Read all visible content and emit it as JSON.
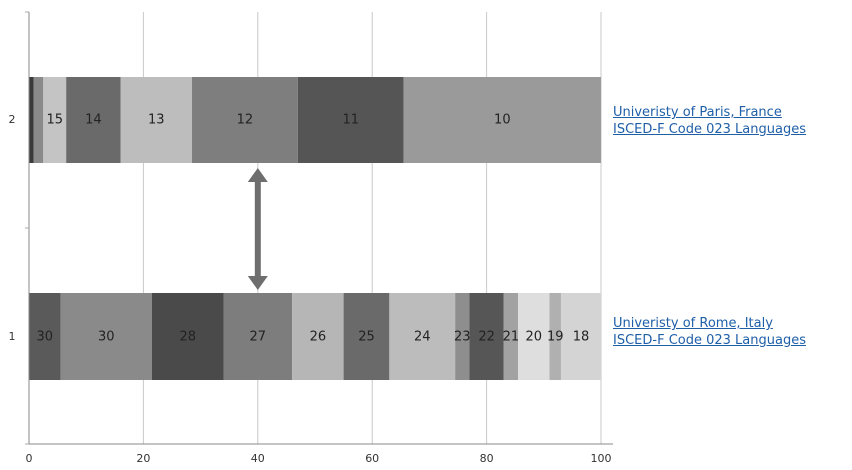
{
  "chart_data": {
    "type": "bar",
    "orientation": "horizontal",
    "stacked": true,
    "xlim": [
      0,
      100
    ],
    "x_ticks": [
      0,
      20,
      40,
      60,
      80,
      100
    ],
    "grid": true,
    "categories": [
      "1",
      "2"
    ],
    "bars": [
      {
        "category": "1",
        "segments": [
          {
            "label": "30",
            "start": 0,
            "end": 5.5,
            "color": "#5a5a5a"
          },
          {
            "label": "30",
            "start": 5.5,
            "end": 21.5,
            "color": "#8a8a8a"
          },
          {
            "label": "28",
            "start": 21.5,
            "end": 34.0,
            "color": "#4a4a4a"
          },
          {
            "label": "27",
            "start": 34.0,
            "end": 46.0,
            "color": "#7d7d7d"
          },
          {
            "label": "26",
            "start": 46.0,
            "end": 55.0,
            "color": "#b6b6b6"
          },
          {
            "label": "25",
            "start": 55.0,
            "end": 63.0,
            "color": "#6a6a6a"
          },
          {
            "label": "24",
            "start": 63.0,
            "end": 74.5,
            "color": "#bcbcbc"
          },
          {
            "label": "23",
            "start": 74.5,
            "end": 77.0,
            "color": "#8e8e8e"
          },
          {
            "label": "22",
            "start": 77.0,
            "end": 83.0,
            "color": "#565656"
          },
          {
            "label": "21",
            "start": 83.0,
            "end": 85.5,
            "color": "#a2a2a2"
          },
          {
            "label": "20",
            "start": 85.5,
            "end": 91.0,
            "color": "#dedede"
          },
          {
            "label": "19",
            "start": 91.0,
            "end": 93.0,
            "color": "#b0b0b0"
          },
          {
            "label": "18",
            "start": 93.0,
            "end": 100,
            "color": "#d4d4d4"
          }
        ]
      },
      {
        "category": "2",
        "segments": [
          {
            "label": "",
            "start": 0,
            "end": 0.8,
            "color": "#3a3a3a"
          },
          {
            "label": "",
            "start": 0.8,
            "end": 2.5,
            "color": "#8a8a8a"
          },
          {
            "label": "15",
            "start": 2.5,
            "end": 6.5,
            "color": "#c4c4c4"
          },
          {
            "label": "14",
            "start": 6.5,
            "end": 16.0,
            "color": "#6a6a6a"
          },
          {
            "label": "13",
            "start": 16.0,
            "end": 28.5,
            "color": "#bdbdbd"
          },
          {
            "label": "12",
            "start": 28.5,
            "end": 47.0,
            "color": "#7e7e7e"
          },
          {
            "label": "11",
            "start": 47.0,
            "end": 65.5,
            "color": "#555555"
          },
          {
            "label": "10",
            "start": 65.5,
            "end": 100,
            "color": "#9a9a9a"
          }
        ]
      }
    ],
    "annotation": {
      "type": "double-arrow",
      "x": 40,
      "color": "#6e6e6e"
    },
    "legend": [
      {
        "category": "2",
        "line1": "Univeristy of Paris, France",
        "line2": "ISCED-F Code 023 Languages"
      },
      {
        "category": "1",
        "line1": "Univeristy of Rome, Italy",
        "line2": "ISCED-F Code 023 Languages"
      }
    ],
    "legend_placement": "right",
    "link_color": "#1f5fa8",
    "grid_color": "#c8c8c8"
  }
}
